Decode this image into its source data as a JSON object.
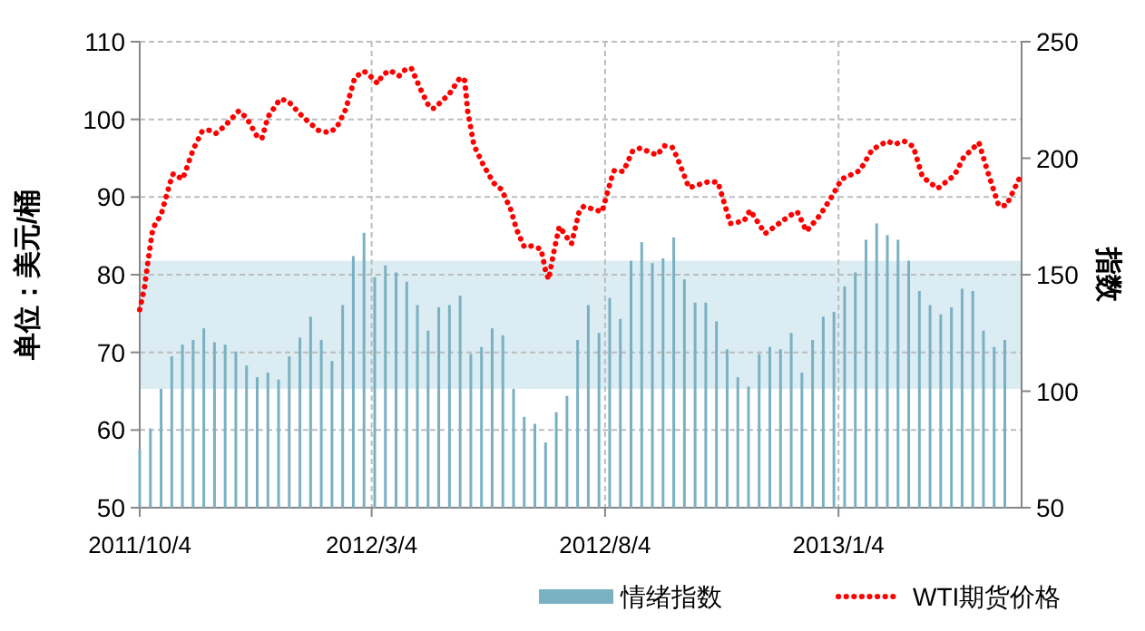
{
  "chart_data": {
    "type": "bar",
    "ylabel": "单位：美元/桶",
    "y2label": "指数",
    "xlim": [
      "2011-10-04",
      "2013-05-04"
    ],
    "xticks": [
      {
        "value": "2011-10-04",
        "label": "2011/10/4"
      },
      {
        "value": "2012-03-04",
        "label": "2012/3/4"
      },
      {
        "value": "2012-08-04",
        "label": "2012/8/4"
      },
      {
        "value": "2013-01-04",
        "label": "2013/1/4"
      }
    ],
    "ylim": [
      50,
      110
    ],
    "yticks": [
      50,
      60,
      70,
      80,
      90,
      100,
      110
    ],
    "y2lim": [
      50,
      250
    ],
    "y2ticks": [
      50,
      100,
      150,
      200,
      250
    ],
    "grid": true,
    "legend": "bottom",
    "bands": [
      {
        "axis": "y2",
        "from": 101,
        "to": 156,
        "color": "#dbecf3"
      }
    ],
    "series": [
      {
        "name": "情绪指数",
        "axis": "y2",
        "color": "#7ab1c2",
        "x": [
          "2011-10-04",
          "2011-10-11",
          "2011-10-18",
          "2011-10-25",
          "2011-11-01",
          "2011-11-08",
          "2011-11-15",
          "2011-11-22",
          "2011-11-29",
          "2011-12-06",
          "2011-12-13",
          "2011-12-20",
          "2011-12-27",
          "2012-01-03",
          "2012-01-10",
          "2012-01-17",
          "2012-01-24",
          "2012-01-31",
          "2012-02-07",
          "2012-02-14",
          "2012-02-21",
          "2012-02-28",
          "2012-03-06",
          "2012-03-13",
          "2012-03-20",
          "2012-03-27",
          "2012-04-03",
          "2012-04-10",
          "2012-04-17",
          "2012-04-24",
          "2012-05-01",
          "2012-05-08",
          "2012-05-15",
          "2012-05-22",
          "2012-05-29",
          "2012-06-05",
          "2012-06-12",
          "2012-06-19",
          "2012-06-26",
          "2012-07-03",
          "2012-07-10",
          "2012-07-17",
          "2012-07-24",
          "2012-07-31",
          "2012-08-07",
          "2012-08-14",
          "2012-08-21",
          "2012-08-28",
          "2012-09-04",
          "2012-09-11",
          "2012-09-18",
          "2012-09-25",
          "2012-10-02",
          "2012-10-09",
          "2012-10-16",
          "2012-10-23",
          "2012-10-30",
          "2012-11-06",
          "2012-11-13",
          "2012-11-20",
          "2012-11-27",
          "2012-12-04",
          "2012-12-11",
          "2012-12-18",
          "2012-12-25",
          "2013-01-01",
          "2013-01-08",
          "2013-01-15",
          "2013-01-22",
          "2013-01-29",
          "2013-02-05",
          "2013-02-12",
          "2013-02-19",
          "2013-02-26",
          "2013-03-05",
          "2013-03-12",
          "2013-03-19",
          "2013-03-26",
          "2013-04-02",
          "2013-04-09",
          "2013-04-16",
          "2013-04-23"
        ],
        "values": [
          75,
          84,
          101,
          115,
          120,
          122,
          127,
          121,
          120,
          117,
          111,
          106,
          108,
          105,
          115,
          123,
          132,
          122,
          113,
          137,
          158,
          168,
          149,
          154,
          151,
          147,
          137,
          126,
          136,
          137,
          141,
          116,
          119,
          127,
          124,
          101,
          89,
          86,
          78,
          91,
          98,
          122,
          137,
          125,
          140,
          131,
          156,
          164,
          155,
          157,
          166,
          148,
          138,
          138,
          130,
          118,
          106,
          102,
          116,
          119,
          118,
          125,
          108,
          122,
          132,
          134,
          145,
          151,
          165,
          172,
          167,
          165,
          156,
          143,
          137,
          133,
          136,
          144,
          143,
          126,
          119,
          122
        ]
      },
      {
        "name": "WTI期货价格",
        "type": "line",
        "axis": "y",
        "color": "#ff0000",
        "line_style": "dotted",
        "x": [
          "2011-10-04",
          "2011-10-07",
          "2011-10-09",
          "2011-10-11",
          "2011-10-12",
          "2011-10-14",
          "2011-10-18",
          "2011-10-20",
          "2011-10-24",
          "2011-10-26",
          "2011-11-01",
          "2011-11-03",
          "2011-11-08",
          "2011-11-14",
          "2011-11-19",
          "2011-11-23",
          "2011-11-29",
          "2011-12-08",
          "2011-12-13",
          "2011-12-20",
          "2011-12-23",
          "2011-12-27",
          "2012-01-04",
          "2012-01-09",
          "2012-01-19",
          "2012-01-29",
          "2012-02-05",
          "2012-02-10",
          "2012-02-16",
          "2012-02-20",
          "2012-02-22",
          "2012-02-28",
          "2012-03-03",
          "2012-03-08",
          "2012-03-11",
          "2012-03-16",
          "2012-03-22",
          "2012-03-26",
          "2012-03-30",
          "2012-04-05",
          "2012-04-11",
          "2012-04-14",
          "2012-04-24",
          "2012-05-01",
          "2012-05-04",
          "2012-05-06",
          "2012-05-10",
          "2012-05-16",
          "2012-05-23",
          "2012-05-28",
          "2012-06-03",
          "2012-06-07",
          "2012-06-12",
          "2012-06-17",
          "2012-06-23",
          "2012-06-26",
          "2012-06-28",
          "2012-07-02",
          "2012-07-05",
          "2012-07-10",
          "2012-07-13",
          "2012-07-18",
          "2012-07-21",
          "2012-08-02",
          "2012-08-08",
          "2012-08-10",
          "2012-08-16",
          "2012-08-22",
          "2012-08-27",
          "2012-09-07",
          "2012-09-12",
          "2012-09-17",
          "2012-09-20",
          "2012-09-28",
          "2012-10-11",
          "2012-10-17",
          "2012-10-23",
          "2012-10-25",
          "2012-11-03",
          "2012-11-07",
          "2012-11-17",
          "2012-12-03",
          "2012-12-08",
          "2012-12-14",
          "2012-12-23",
          "2012-12-31",
          "2013-01-06",
          "2013-01-18",
          "2013-01-26",
          "2013-02-05",
          "2013-02-10",
          "2013-02-16",
          "2013-02-22",
          "2013-02-28",
          "2013-03-10",
          "2013-03-21",
          "2013-03-27",
          "2013-04-06",
          "2013-04-12",
          "2013-04-19",
          "2013-04-24",
          "2013-05-03"
        ],
        "values": [
          75.5,
          78.2,
          81.1,
          83.9,
          85.3,
          86.5,
          87.7,
          89.1,
          91.9,
          93.0,
          92.3,
          93.3,
          96.1,
          98.5,
          98.6,
          98.2,
          99.2,
          101.1,
          100.2,
          97.8,
          97.5,
          100.3,
          102.6,
          102.4,
          100.3,
          98.6,
          98.3,
          98.9,
          101.3,
          104.0,
          105.4,
          106.2,
          105.6,
          104.6,
          105.7,
          106.3,
          105.6,
          106.4,
          106.6,
          103.9,
          101.5,
          101.4,
          103.3,
          105.4,
          105.0,
          101.0,
          96.7,
          94.2,
          91.8,
          91.0,
          88.5,
          85.8,
          83.6,
          83.7,
          83.3,
          80.5,
          79.4,
          83.5,
          86.2,
          84.8,
          84.0,
          88.1,
          88.8,
          88.1,
          92.3,
          93.4,
          93.3,
          95.9,
          96.3,
          95.4,
          96.6,
          96.4,
          95.2,
          91.2,
          92.0,
          91.9,
          88.0,
          86.6,
          86.9,
          88.3,
          85.3,
          87.6,
          88.1,
          85.6,
          87.7,
          90.2,
          92.3,
          93.4,
          96.1,
          97.2,
          96.8,
          97.2,
          96.5,
          92.6,
          91.1,
          92.8,
          95.1,
          97.0,
          93.1,
          88.9,
          88.9,
          92.6
        ]
      }
    ]
  }
}
